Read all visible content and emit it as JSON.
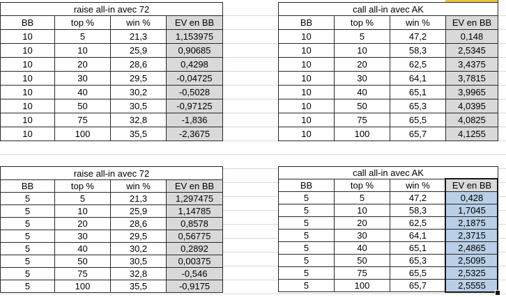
{
  "colors": {
    "gridline": "#d9d9d9",
    "table_border": "#262626",
    "ev_fill_gray": "#d9d9d9",
    "ev_fill_selected_blue": "#b9cfe7",
    "selection_border": "#141414",
    "partial_cell_yellow": "#f0c23c"
  },
  "tables": {
    "top_left": {
      "title": "raise all-in avec 72",
      "headers": [
        "BB",
        "top %",
        "win %",
        "EV en BB"
      ],
      "rows": [
        [
          "10",
          "5",
          "21,3",
          "1,153975"
        ],
        [
          "10",
          "10",
          "25,9",
          "0,90685"
        ],
        [
          "10",
          "20",
          "28,6",
          "0,4298"
        ],
        [
          "10",
          "30",
          "29,5",
          "-0,04725"
        ],
        [
          "10",
          "40",
          "30,2",
          "-0,5028"
        ],
        [
          "10",
          "50",
          "30,5",
          "-0,97125"
        ],
        [
          "10",
          "75",
          "32,8",
          "-1,836"
        ],
        [
          "10",
          "100",
          "35,5",
          "-2,3675"
        ]
      ]
    },
    "top_right": {
      "title": "call all-in avec AK",
      "headers": [
        "BB",
        "top %",
        "win %",
        "EV en BB"
      ],
      "rows": [
        [
          "10",
          "5",
          "47,2",
          "0,148"
        ],
        [
          "10",
          "10",
          "58,3",
          "2,5345"
        ],
        [
          "10",
          "20",
          "62,5",
          "3,4375"
        ],
        [
          "10",
          "30",
          "64,1",
          "3,7815"
        ],
        [
          "10",
          "40",
          "65,1",
          "3,9965"
        ],
        [
          "10",
          "50",
          "65,3",
          "4,0395"
        ],
        [
          "10",
          "75",
          "65,5",
          "4,0825"
        ],
        [
          "10",
          "100",
          "65,7",
          "4,1255"
        ]
      ]
    },
    "bottom_left": {
      "title": "raise all-in avec 72",
      "headers": [
        "BB",
        "top %",
        "win %",
        "EV en BB"
      ],
      "rows": [
        [
          "5",
          "5",
          "21,3",
          "1,297475"
        ],
        [
          "5",
          "10",
          "25,9",
          "1,14785"
        ],
        [
          "5",
          "20",
          "28,6",
          "0,8578"
        ],
        [
          "5",
          "30",
          "29,5",
          "0,56775"
        ],
        [
          "5",
          "40",
          "30,2",
          "0,2892"
        ],
        [
          "5",
          "50",
          "30,5",
          "0,00375"
        ],
        [
          "5",
          "75",
          "32,8",
          "-0,546"
        ],
        [
          "5",
          "100",
          "35,5",
          "-0,9175"
        ]
      ]
    },
    "bottom_right": {
      "title": "call all-in avec AK",
      "headers": [
        "BB",
        "top %",
        "win %",
        "EV en BB"
      ],
      "rows": [
        [
          "5",
          "5",
          "47,2",
          "0,428"
        ],
        [
          "5",
          "10",
          "58,3",
          "1,7045"
        ],
        [
          "5",
          "20",
          "62,5",
          "2,1875"
        ],
        [
          "5",
          "30",
          "64,1",
          "2,3715"
        ],
        [
          "5",
          "40",
          "65,1",
          "2,4865"
        ],
        [
          "5",
          "50",
          "65,3",
          "2,5095"
        ],
        [
          "5",
          "75",
          "65,5",
          "2,5325"
        ],
        [
          "5",
          "100",
          "65,7",
          "2,5555"
        ]
      ],
      "selection": {
        "selected_column": "EV en BB",
        "has_fill_handle": true
      }
    }
  }
}
